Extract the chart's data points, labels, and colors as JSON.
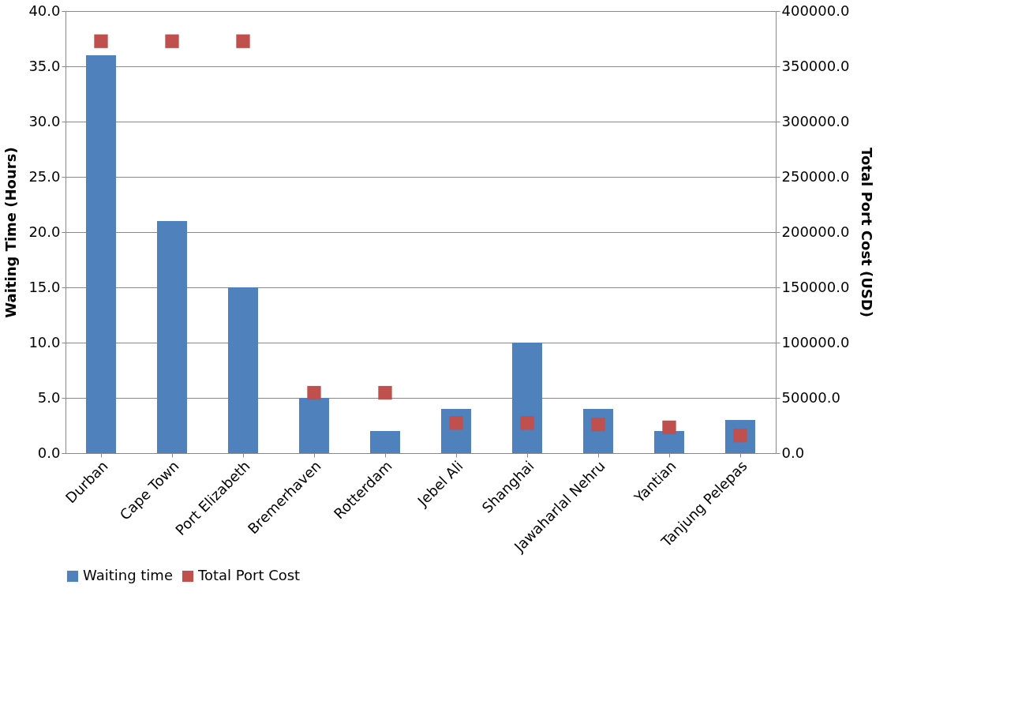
{
  "chart_data": {
    "type": "bar",
    "ylabel": "Waiting Time (Hours)",
    "y2label": "Total Port Cost (USD)",
    "categories": [
      "Durban",
      "Cape Town",
      "Port Elizabeth",
      "Bremerhaven",
      "Rotterdam",
      "Jebel Ali",
      "Shanghai",
      "Jawaharlal Nehru",
      "Yantian",
      "Tanjung Pelepas"
    ],
    "series": [
      {
        "name": "Waiting time",
        "color": "#4f81bd",
        "values": [
          36,
          21,
          15,
          5,
          2,
          4,
          10,
          4,
          2,
          3
        ]
      },
      {
        "name": "Total Port Cost",
        "type": "scatter",
        "axis": "y2",
        "color": "#c0504d",
        "values": [
          372700,
          372700,
          372700,
          54600,
          54600,
          27300,
          27300,
          26000,
          23300,
          16000
        ]
      }
    ],
    "ylim": [
      0,
      40
    ],
    "yticks": [
      {
        "value": 0,
        "label": "0.0"
      },
      {
        "value": 5,
        "label": "5.0"
      },
      {
        "value": 10,
        "label": "10.0"
      },
      {
        "value": 15,
        "label": "15.0"
      },
      {
        "value": 20,
        "label": "20.0"
      },
      {
        "value": 25,
        "label": "25.0"
      },
      {
        "value": 30,
        "label": "30.0"
      },
      {
        "value": 35,
        "label": "35.0"
      },
      {
        "value": 40,
        "label": "40.0"
      }
    ],
    "y2lim": [
      0,
      400000
    ],
    "y2ticks": [
      {
        "value": 0,
        "label": "0.0"
      },
      {
        "value": 50000,
        "label": "50000.0"
      },
      {
        "value": 100000,
        "label": "100000.0"
      },
      {
        "value": 150000,
        "label": "150000.0"
      },
      {
        "value": 200000,
        "label": "200000.0"
      },
      {
        "value": 250000,
        "label": "250000.0"
      },
      {
        "value": 300000,
        "label": "300000.0"
      },
      {
        "value": 350000,
        "label": "350000.0"
      },
      {
        "value": 400000,
        "label": "400000.0"
      }
    ],
    "grid": "y",
    "legend": "bottom",
    "marker": "square"
  }
}
